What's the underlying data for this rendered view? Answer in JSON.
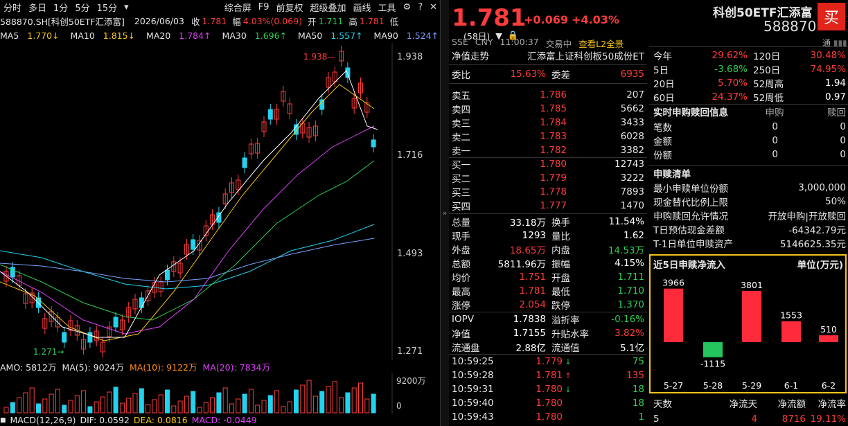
{
  "toolbar": {
    "items": [
      "分时",
      "多日",
      "1分",
      "5分",
      "15分",
      "▾"
    ],
    "right": [
      "综合屏",
      "F9",
      "前复权",
      "超级叠加",
      "画线",
      "工具"
    ]
  },
  "info": {
    "code": "588870.SH[科创50ETF汇添富]",
    "date": "2026/06/03",
    "close_label": "收",
    "close": "1.781",
    "amp_label": "幅",
    "amp": "4.03%(0.069)",
    "open_label": "开",
    "open": "1.711",
    "high_label": "高",
    "high": "1.781",
    "low_label": "低"
  },
  "ma": {
    "ma5": "MA5",
    "ma5v": "1.770↓",
    "ma10": "MA10",
    "ma10v": "1.815↓",
    "ma20": "MA20",
    "ma20v": "1.784↑",
    "ma30": "MA30",
    "ma30v": "1.696↑",
    "ma50": "MA50",
    "ma50v": "1.557↑",
    "ma90": "MA90",
    "ma90v": "1.524↑",
    "days": "(58日)"
  },
  "kchart": {
    "yticks": [
      "1.938",
      "1.716",
      "1.493",
      "1.271"
    ],
    "high_label": "1.938—",
    "low_label": "1.271→"
  },
  "amo": {
    "amo": "AMO: 5812万",
    "ma5": "MA(5): 9024万",
    "ma10": "MA(10): 9122万",
    "ma20": "MA(20): 7834万"
  },
  "vol": {
    "top": "9200万",
    "bottom": "0"
  },
  "macd": {
    "label": "MACD(12,26,9)",
    "dif": "DIF: 0.0592",
    "dea": "DEA: 0.0816",
    "macd": "MACD: -0.0449"
  },
  "quote": {
    "price": "1.781",
    "change": "+0.069",
    "pct": "+4.03%",
    "name": "科创50ETF汇添富",
    "code": "588870",
    "buy": "买",
    "exchange": "SSE",
    "currency": "CNY",
    "time": "11:00:37",
    "status": "交易中",
    "l2": "查看L2全景",
    "tong": "通"
  },
  "nav": {
    "label": "净值走势",
    "index": "汇添富上证科创板50成份ET"
  },
  "weibi": {
    "label1": "委比",
    "v1": "15.63%",
    "label2": "委差",
    "v2": "6935"
  },
  "asks": [
    {
      "l": "卖五",
      "p": "1.786",
      "v": "207"
    },
    {
      "l": "卖四",
      "p": "1.785",
      "v": "5662"
    },
    {
      "l": "卖三",
      "p": "1.784",
      "v": "3433"
    },
    {
      "l": "卖二",
      "p": "1.783",
      "v": "6028"
    },
    {
      "l": "卖一",
      "p": "1.782",
      "v": "3382"
    }
  ],
  "bids": [
    {
      "l": "买一",
      "p": "1.780",
      "v": "12743"
    },
    {
      "l": "买二",
      "p": "1.779",
      "v": "3222"
    },
    {
      "l": "买三",
      "p": "1.778",
      "v": "7893"
    },
    {
      "l": "买四",
      "p": "1.777",
      "v": "1470"
    }
  ],
  "stats": [
    {
      "l1": "总量",
      "v1": "33.18万",
      "c1": "white",
      "l2": "换手",
      "v2": "11.54%",
      "c2": "white"
    },
    {
      "l1": "现手",
      "v1": "1293",
      "c1": "white",
      "l2": "量比",
      "v2": "1.62",
      "c2": "white"
    },
    {
      "l1": "外盘",
      "v1": "18.65万",
      "c1": "red",
      "l2": "内盘",
      "v2": "14.53万",
      "c2": "green"
    },
    {
      "l1": "总额",
      "v1": "5811.96万",
      "c1": "white",
      "l2": "振幅",
      "v2": "4.15%",
      "c2": "white"
    },
    {
      "l1": "均价",
      "v1": "1.751",
      "c1": "red",
      "l2": "开盘",
      "v2": "1.711",
      "c2": "green"
    },
    {
      "l1": "最高",
      "v1": "1.781",
      "c1": "red",
      "l2": "最低",
      "v2": "1.710",
      "c2": "green"
    },
    {
      "l1": "涨停",
      "v1": "2.054",
      "c1": "red",
      "l2": "跌停",
      "v2": "1.370",
      "c2": "green"
    }
  ],
  "iopv": [
    {
      "l1": "IOPV",
      "v1": "1.7838",
      "c1": "white",
      "l2": "溢折率",
      "v2": "-0.16%",
      "c2": "green"
    },
    {
      "l1": "净值",
      "v1": "1.7155",
      "c1": "white",
      "l2": "升贴水率",
      "v2": "3.82%",
      "c2": "red"
    },
    {
      "l1": "流通盘",
      "v1": "2.88亿",
      "c1": "white",
      "l2": "流通值",
      "v2": "5.1亿",
      "c2": "white"
    }
  ],
  "ticks": [
    {
      "t": "10:59:25",
      "p": "1.779",
      "a": "↓",
      "v": "75",
      "c": "green"
    },
    {
      "t": "10:59:28",
      "p": "1.781",
      "a": "↑",
      "v": "135",
      "c": "red"
    },
    {
      "t": "10:59:31",
      "p": "1.780",
      "a": "↓",
      "v": "18",
      "c": "green"
    },
    {
      "t": "10:59:40",
      "p": "1.780",
      "a": "",
      "v": "18",
      "c": "green"
    },
    {
      "t": "10:59:43",
      "p": "1.780",
      "a": "",
      "v": "1",
      "c": "green"
    }
  ],
  "perf": [
    {
      "l1": "今年",
      "v1": "29.62%",
      "c1": "red",
      "l2": "120日",
      "v2": "30.48%",
      "c2": "red"
    },
    {
      "l1": "5日",
      "v1": "-3.68%",
      "c1": "green",
      "l2": "250日",
      "v2": "74.95%",
      "c2": "red"
    },
    {
      "l1": "20日",
      "v1": "5.70%",
      "c1": "red",
      "l2": "52周高",
      "v2": "1.94",
      "c2": "white"
    },
    {
      "l1": "60日",
      "v1": "24.37%",
      "c1": "red",
      "l2": "52周低",
      "v2": "0.97",
      "c2": "white"
    }
  ],
  "realtime": {
    "title": "实时申购赎回信息",
    "col1": "申购",
    "col2": "赎回",
    "rows": [
      {
        "l": "笔数",
        "a": "0",
        "b": "0"
      },
      {
        "l": "金额",
        "a": "0",
        "b": "0"
      },
      {
        "l": "份额",
        "a": "0",
        "b": "0"
      }
    ]
  },
  "creation": {
    "title": "申赎清单",
    "rows": [
      {
        "l": "最小申赎单位份额",
        "v": "3,000,000"
      },
      {
        "l": "现金替代比例上限",
        "v": "50%"
      },
      {
        "l": "申购赎回允许情况",
        "v": "开放申购|开放赎回"
      },
      {
        "l": "T日预估现金差额",
        "v": "-64342.79元"
      },
      {
        "l": "T-1日单位申赎资产",
        "v": "5146625.35元"
      }
    ]
  },
  "inflow": {
    "title": "近5日申赎净流入",
    "unit": "单位(万元)"
  },
  "chart_data": {
    "type": "bar",
    "title": "近5日申赎净流入",
    "ylabel": "单位(万元)",
    "categories": [
      "5-27",
      "5-28",
      "5-29",
      "6-1",
      "6-2"
    ],
    "values": [
      3966,
      -1115,
      3801,
      1553,
      510
    ],
    "colors": {
      "pos": "#ff2a3a",
      "neg": "#22c55e"
    }
  },
  "summary": {
    "h1": "天数",
    "h2": "净流天",
    "h3": "净流额",
    "h4": "净流率",
    "v1": "5",
    "v2": "4",
    "v3": "8716",
    "v4": "19.11%"
  }
}
